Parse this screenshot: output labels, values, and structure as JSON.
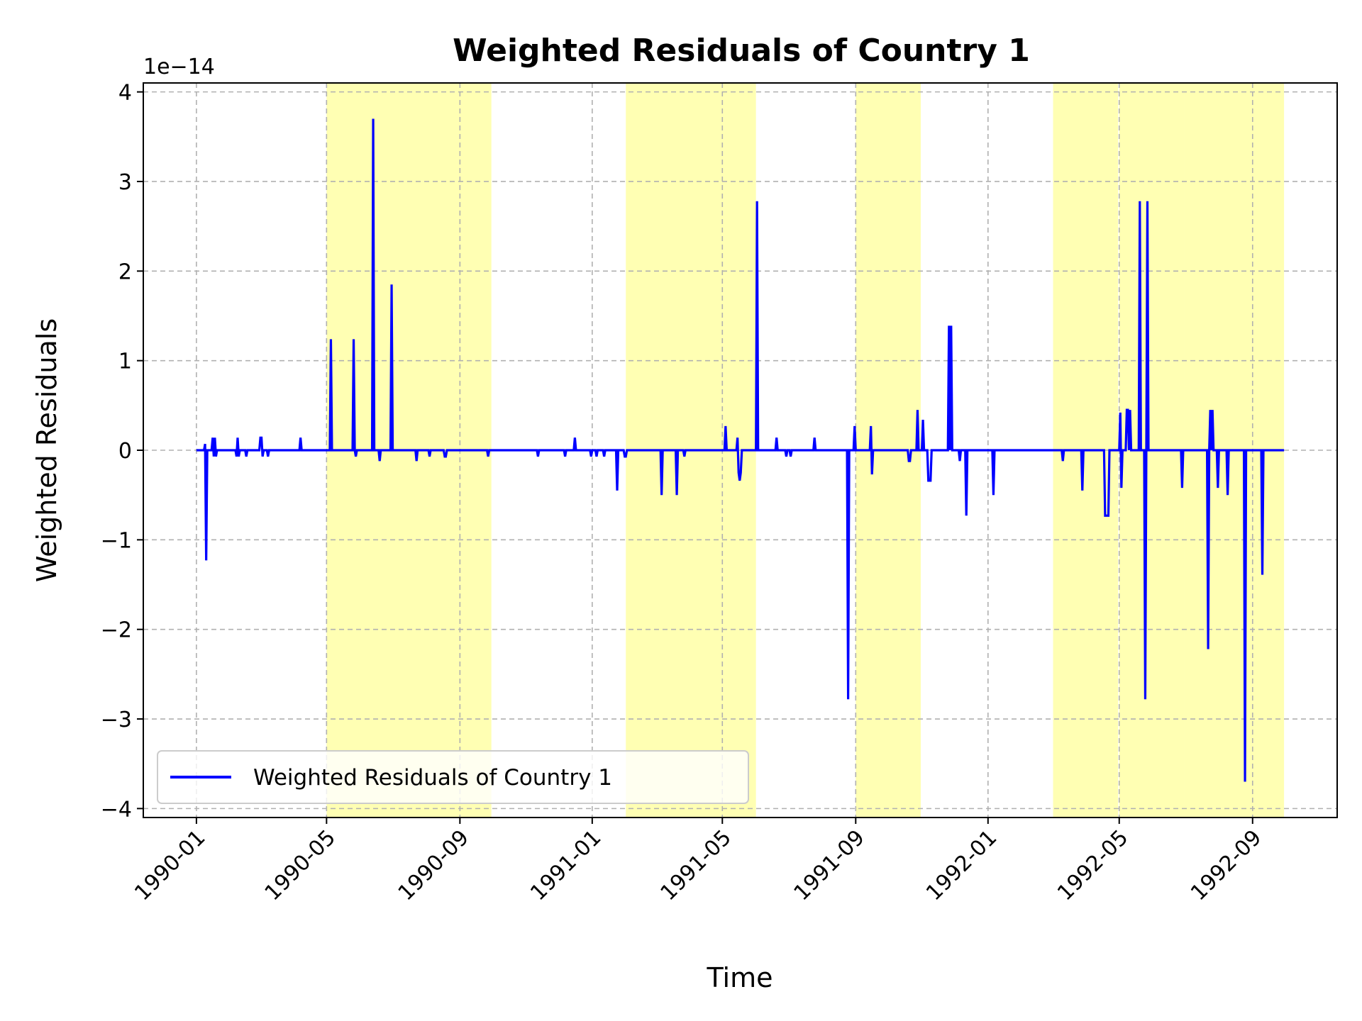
{
  "chart_data": {
    "type": "line",
    "title": "Weighted Residuals of Country 1",
    "xlabel": "Time",
    "ylabel": "Weighted Residuals",
    "y_offset_text": "1e−14",
    "y_scale_factor": 1e-14,
    "ylim": [
      -4.1,
      4.1
    ],
    "xlim": [
      "1989-11-13",
      "1992-11-18"
    ],
    "grid": true,
    "grid_style": "dashed",
    "legend_position": "lower-left",
    "x_tick_labels": [
      "1990-01",
      "1990-05",
      "1990-09",
      "1991-01",
      "1991-05",
      "1991-09",
      "1992-01",
      "1992-05",
      "1992-09"
    ],
    "y_tick_labels": [
      "4",
      "3",
      "2",
      "1",
      "0",
      "−1",
      "−2",
      "−3",
      "−4"
    ],
    "highlight_color": "#ffff99",
    "line_color": "#0000ff",
    "highlighted_periods": [
      [
        "1990-05-01",
        "1990-09-30"
      ],
      [
        "1991-02-01",
        "1991-06-01"
      ],
      [
        "1991-09-01",
        "1991-10-31"
      ],
      [
        "1992-03-01",
        "1992-04-30"
      ],
      [
        "1992-05-01",
        "1992-06-30"
      ],
      [
        "1992-06-30",
        "1992-09-30"
      ]
    ],
    "series": [
      {
        "name": "Weighted Residuals of Country 1",
        "color": "#0000ff",
        "points": [
          [
            "1990-01-01",
            0
          ],
          [
            "1990-01-08",
            0
          ],
          [
            "1990-01-09",
            0.07
          ],
          [
            "1990-01-10",
            -1.23
          ],
          [
            "1990-01-11",
            0
          ],
          [
            "1990-01-15",
            0
          ],
          [
            "1990-01-16",
            0.14
          ],
          [
            "1990-01-17",
            -0.07
          ],
          [
            "1990-01-18",
            0.14
          ],
          [
            "1990-01-19",
            -0.07
          ],
          [
            "1990-01-20",
            0
          ],
          [
            "1990-02-06",
            0
          ],
          [
            "1990-02-07",
            -0.07
          ],
          [
            "1990-02-08",
            0.14
          ],
          [
            "1990-02-09",
            -0.07
          ],
          [
            "1990-02-10",
            0
          ],
          [
            "1990-02-15",
            0
          ],
          [
            "1990-02-16",
            -0.07
          ],
          [
            "1990-02-17",
            0
          ],
          [
            "1990-02-28",
            0
          ],
          [
            "1990-03-01",
            0.14
          ],
          [
            "1990-03-02",
            0.14
          ],
          [
            "1990-03-03",
            -0.07
          ],
          [
            "1990-03-04",
            0
          ],
          [
            "1990-03-07",
            0
          ],
          [
            "1990-03-08",
            -0.07
          ],
          [
            "1990-03-09",
            0
          ],
          [
            "1990-04-06",
            0
          ],
          [
            "1990-04-07",
            0.14
          ],
          [
            "1990-04-08",
            0
          ],
          [
            "1990-05-04",
            0
          ],
          [
            "1990-05-05",
            1.24
          ],
          [
            "1990-05-06",
            0
          ],
          [
            "1990-05-25",
            0
          ],
          [
            "1990-05-26",
            1.24
          ],
          [
            "1990-05-27",
            0
          ],
          [
            "1990-05-28",
            -0.07
          ],
          [
            "1990-05-29",
            0
          ],
          [
            "1990-06-12",
            0
          ],
          [
            "1990-06-13",
            3.7
          ],
          [
            "1990-06-14",
            0
          ],
          [
            "1990-06-18",
            0
          ],
          [
            "1990-06-19",
            -0.12
          ],
          [
            "1990-06-20",
            0
          ],
          [
            "1990-06-29",
            0
          ],
          [
            "1990-06-30",
            1.85
          ],
          [
            "1990-07-01",
            0
          ],
          [
            "1990-07-22",
            0
          ],
          [
            "1990-07-23",
            -0.12
          ],
          [
            "1990-07-24",
            0
          ],
          [
            "1990-08-03",
            0
          ],
          [
            "1990-08-04",
            -0.07
          ],
          [
            "1990-08-05",
            0
          ],
          [
            "1990-08-17",
            0
          ],
          [
            "1990-08-18",
            -0.07
          ],
          [
            "1990-08-19",
            -0.07
          ],
          [
            "1990-08-20",
            0
          ],
          [
            "1990-09-26",
            0
          ],
          [
            "1990-09-27",
            -0.07
          ],
          [
            "1990-09-28",
            0
          ],
          [
            "1990-11-11",
            0
          ],
          [
            "1990-11-12",
            -0.07
          ],
          [
            "1990-11-13",
            0
          ],
          [
            "1990-12-06",
            0
          ],
          [
            "1990-12-07",
            -0.07
          ],
          [
            "1990-12-08",
            0
          ],
          [
            "1990-12-15",
            0
          ],
          [
            "1990-12-16",
            0.14
          ],
          [
            "1990-12-17",
            0
          ],
          [
            "1990-12-30",
            0
          ],
          [
            "1990-12-31",
            -0.07
          ],
          [
            "1991-01-01",
            0
          ],
          [
            "1991-01-04",
            0
          ],
          [
            "1991-01-05",
            -0.07
          ],
          [
            "1991-01-06",
            0
          ],
          [
            "1991-01-11",
            0
          ],
          [
            "1991-01-12",
            -0.07
          ],
          [
            "1991-01-13",
            0
          ],
          [
            "1991-01-23",
            0
          ],
          [
            "1991-01-24",
            -0.45
          ],
          [
            "1991-01-25",
            0
          ],
          [
            "1991-01-30",
            0
          ],
          [
            "1991-01-31",
            -0.07
          ],
          [
            "1991-02-01",
            -0.07
          ],
          [
            "1991-02-02",
            0
          ],
          [
            "1991-03-05",
            0
          ],
          [
            "1991-03-06",
            -0.5
          ],
          [
            "1991-03-07",
            0
          ],
          [
            "1991-03-19",
            0
          ],
          [
            "1991-03-20",
            -0.5
          ],
          [
            "1991-03-21",
            0
          ],
          [
            "1991-03-26",
            0
          ],
          [
            "1991-03-27",
            -0.07
          ],
          [
            "1991-03-28",
            0
          ],
          [
            "1991-05-03",
            0
          ],
          [
            "1991-05-04",
            0.27
          ],
          [
            "1991-05-05",
            0
          ],
          [
            "1991-05-14",
            0
          ],
          [
            "1991-05-15",
            0.14
          ],
          [
            "1991-05-16",
            -0.25
          ],
          [
            "1991-05-17",
            -0.34
          ],
          [
            "1991-05-18",
            -0.25
          ],
          [
            "1991-05-19",
            0
          ],
          [
            "1991-06-01",
            0
          ],
          [
            "1991-06-02",
            2.78
          ],
          [
            "1991-06-03",
            0
          ],
          [
            "1991-06-19",
            0
          ],
          [
            "1991-06-20",
            0.14
          ],
          [
            "1991-06-21",
            0
          ],
          [
            "1991-06-28",
            0
          ],
          [
            "1991-06-29",
            -0.07
          ],
          [
            "1991-06-30",
            0
          ],
          [
            "1991-07-02",
            0
          ],
          [
            "1991-07-03",
            -0.07
          ],
          [
            "1991-07-04",
            0
          ],
          [
            "1991-07-24",
            0
          ],
          [
            "1991-07-25",
            0.14
          ],
          [
            "1991-07-26",
            0
          ],
          [
            "1991-08-24",
            0
          ],
          [
            "1991-08-25",
            -2.78
          ],
          [
            "1991-08-26",
            0
          ],
          [
            "1991-08-30",
            0
          ],
          [
            "1991-08-31",
            0.27
          ],
          [
            "1991-09-01",
            0
          ],
          [
            "1991-09-14",
            0
          ],
          [
            "1991-09-15",
            0.27
          ],
          [
            "1991-09-16",
            -0.27
          ],
          [
            "1991-09-17",
            0
          ],
          [
            "1991-10-19",
            0
          ],
          [
            "1991-10-20",
            -0.12
          ],
          [
            "1991-10-21",
            -0.12
          ],
          [
            "1991-10-22",
            0
          ],
          [
            "1991-10-27",
            0
          ],
          [
            "1991-10-28",
            0.45
          ],
          [
            "1991-10-29",
            0
          ],
          [
            "1991-11-01",
            0
          ],
          [
            "1991-11-02",
            0.34
          ],
          [
            "1991-11-03",
            0
          ],
          [
            "1991-11-06",
            0
          ],
          [
            "1991-11-07",
            -0.34
          ],
          [
            "1991-11-08",
            -0.34
          ],
          [
            "1991-11-09",
            -0.34
          ],
          [
            "1991-11-10",
            0
          ],
          [
            "1991-11-25",
            0
          ],
          [
            "1991-11-26",
            1.39
          ],
          [
            "1991-11-27",
            0
          ],
          [
            "1991-11-28",
            1.39
          ],
          [
            "1991-11-29",
            0
          ],
          [
            "1991-12-05",
            0
          ],
          [
            "1991-12-06",
            -0.12
          ],
          [
            "1991-12-07",
            0
          ],
          [
            "1991-12-11",
            0
          ],
          [
            "1991-12-12",
            -0.73
          ],
          [
            "1991-12-13",
            0
          ],
          [
            "1992-01-05",
            0
          ],
          [
            "1992-01-06",
            -0.5
          ],
          [
            "1992-01-07",
            0
          ],
          [
            "1992-03-09",
            0
          ],
          [
            "1992-03-10",
            -0.12
          ],
          [
            "1992-03-11",
            0
          ],
          [
            "1992-03-27",
            0
          ],
          [
            "1992-03-28",
            -0.45
          ],
          [
            "1992-03-29",
            0
          ],
          [
            "1992-04-17",
            0
          ],
          [
            "1992-04-18",
            -0.73
          ],
          [
            "1992-04-19",
            -0.73
          ],
          [
            "1992-04-20",
            -0.73
          ],
          [
            "1992-04-21",
            -0.73
          ],
          [
            "1992-04-22",
            0
          ],
          [
            "1992-05-01",
            0
          ],
          [
            "1992-05-02",
            0.42
          ],
          [
            "1992-05-03",
            -0.42
          ],
          [
            "1992-05-04",
            0
          ],
          [
            "1992-05-07",
            0
          ],
          [
            "1992-05-08",
            0.45
          ],
          [
            "1992-05-09",
            0.45
          ],
          [
            "1992-05-10",
            0
          ],
          [
            "1992-05-11",
            0.45
          ],
          [
            "1992-05-12",
            0
          ],
          [
            "1992-05-19",
            0
          ],
          [
            "1992-05-20",
            2.78
          ],
          [
            "1992-05-21",
            0
          ],
          [
            "1992-05-24",
            0
          ],
          [
            "1992-05-25",
            -2.78
          ],
          [
            "1992-05-26",
            0
          ],
          [
            "1992-05-27",
            2.78
          ],
          [
            "1992-05-28",
            0
          ],
          [
            "1992-06-27",
            0
          ],
          [
            "1992-06-28",
            -0.42
          ],
          [
            "1992-06-29",
            0
          ],
          [
            "1992-07-21",
            0
          ],
          [
            "1992-07-22",
            -2.22
          ],
          [
            "1992-07-23",
            0
          ],
          [
            "1992-07-24",
            0.45
          ],
          [
            "1992-07-25",
            0
          ],
          [
            "1992-07-26",
            0.45
          ],
          [
            "1992-07-27",
            0
          ],
          [
            "1992-07-30",
            0
          ],
          [
            "1992-07-31",
            -0.42
          ],
          [
            "1992-08-01",
            0
          ],
          [
            "1992-08-08",
            0
          ],
          [
            "1992-08-09",
            -0.5
          ],
          [
            "1992-08-10",
            0
          ],
          [
            "1992-08-24",
            0
          ],
          [
            "1992-08-25",
            -3.7
          ],
          [
            "1992-08-26",
            0
          ],
          [
            "1992-09-09",
            0
          ],
          [
            "1992-09-10",
            -1.39
          ],
          [
            "1992-09-11",
            0
          ],
          [
            "1992-09-30",
            0
          ]
        ]
      }
    ]
  }
}
